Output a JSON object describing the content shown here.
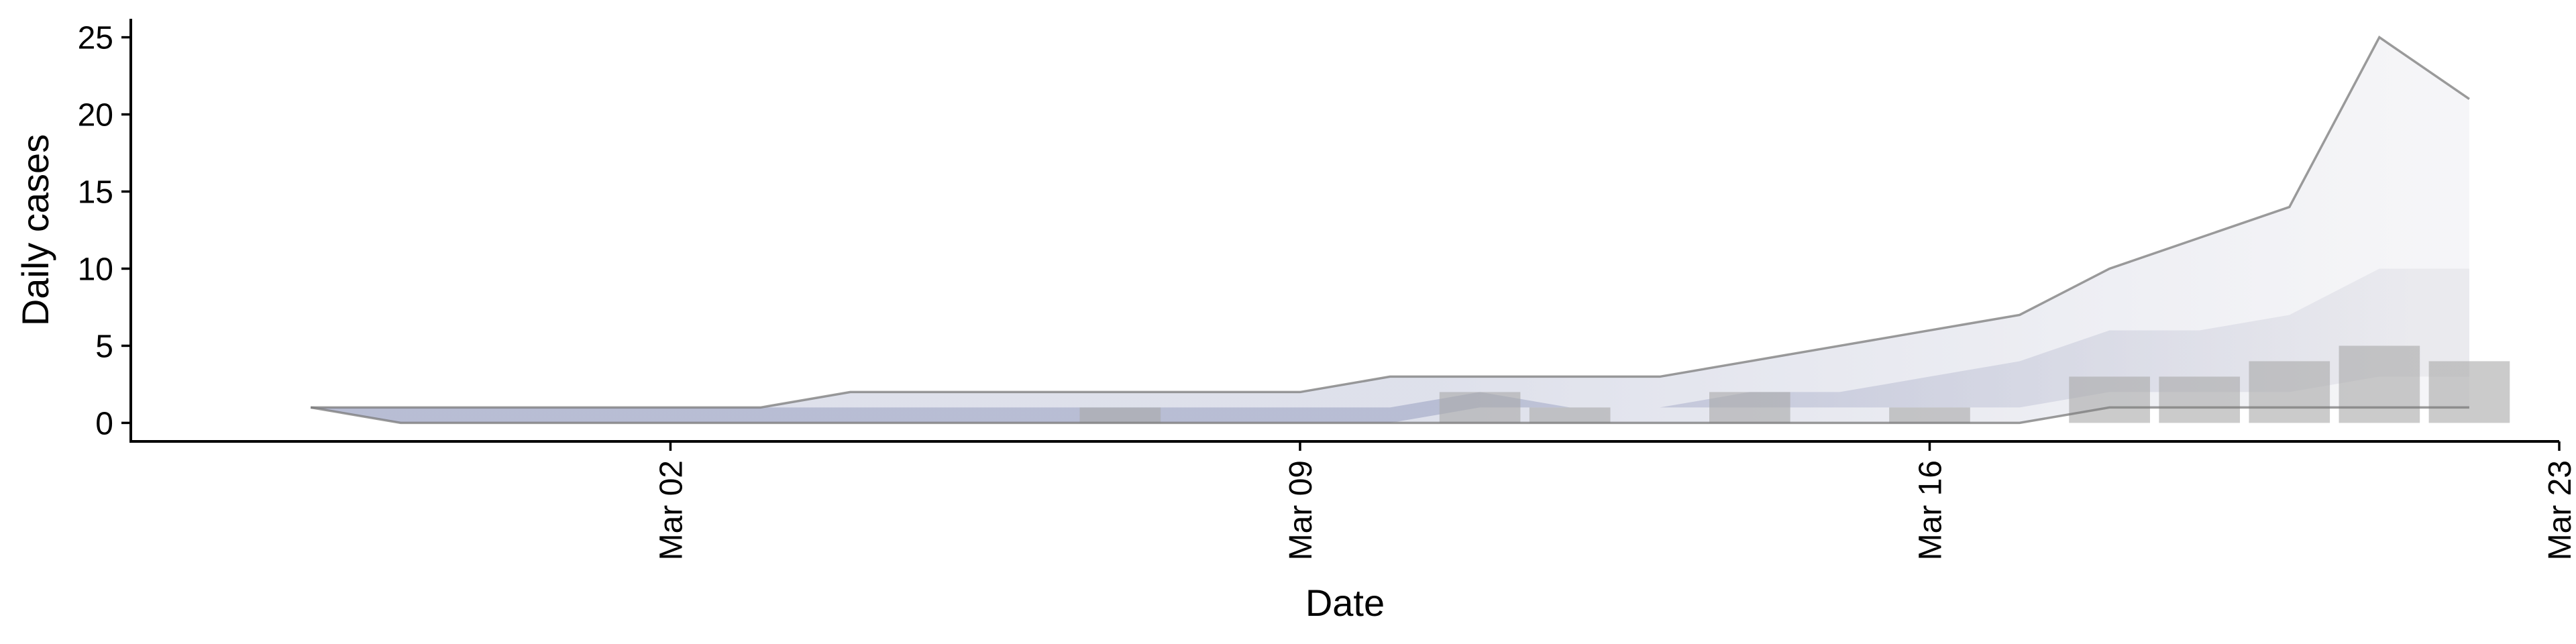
{
  "chart_data": {
    "type": "area",
    "xlabel": "Date",
    "ylabel": "Daily cases",
    "x": [
      "2020-02-27",
      "2020-02-28",
      "2020-02-29",
      "2020-03-01",
      "2020-03-02",
      "2020-03-03",
      "2020-03-04",
      "2020-03-05",
      "2020-03-06",
      "2020-03-07",
      "2020-03-08",
      "2020-03-09",
      "2020-03-10",
      "2020-03-11",
      "2020-03-12",
      "2020-03-13",
      "2020-03-14",
      "2020-03-15",
      "2020-03-16",
      "2020-03-17",
      "2020-03-18",
      "2020-03-19",
      "2020-03-20",
      "2020-03-21",
      "2020-03-22"
    ],
    "bars": {
      "x": [
        "2020-03-07",
        "2020-03-11",
        "2020-03-12",
        "2020-03-14",
        "2020-03-16",
        "2020-03-18",
        "2020-03-19",
        "2020-03-20",
        "2020-03-21",
        "2020-03-22"
      ],
      "values": [
        1,
        2,
        1,
        2,
        1,
        3,
        3,
        4,
        5,
        4
      ]
    },
    "bands": {
      "outer_upper": [
        1,
        1,
        1,
        1,
        1,
        1,
        2,
        2,
        2,
        2,
        2,
        2,
        3,
        3,
        3,
        3,
        4,
        5,
        6,
        7,
        10,
        12,
        14,
        25,
        21
      ],
      "inner_upper": [
        1,
        1,
        1,
        1,
        1,
        1,
        1,
        1,
        1,
        1,
        1,
        1,
        1,
        2,
        1,
        1,
        2,
        2,
        3,
        4,
        6,
        6,
        7,
        10,
        10
      ],
      "inner_lower": [
        1,
        0,
        0,
        0,
        0,
        0,
        0,
        0,
        0,
        0,
        0,
        0,
        0,
        1,
        1,
        1,
        1,
        1,
        1,
        1,
        2,
        2,
        2,
        3,
        3
      ],
      "outer_lower": [
        1,
        0,
        0,
        0,
        0,
        0,
        0,
        0,
        0,
        0,
        0,
        0,
        0,
        0,
        0,
        0,
        0,
        0,
        0,
        0,
        1,
        1,
        1,
        1,
        1
      ]
    },
    "x_ticks": [
      {
        "date": "2020-03-02",
        "label": "Mar 02"
      },
      {
        "date": "2020-03-09",
        "label": "Mar 09"
      },
      {
        "date": "2020-03-16",
        "label": "Mar 16"
      },
      {
        "date": "2020-03-23",
        "label": "Mar 23"
      }
    ],
    "y_ticks": [
      0,
      5,
      10,
      15,
      20,
      25
    ],
    "ylim": [
      -1.2,
      26.2
    ],
    "xlim": [
      "2020-02-25",
      "2020-03-23"
    ],
    "grid": false,
    "legend": "none",
    "colors": {
      "bar": "#a8a8a8",
      "band_early": "#8a92b8",
      "band_late": "#dcdce4",
      "outline": "#7a7a7a"
    }
  }
}
